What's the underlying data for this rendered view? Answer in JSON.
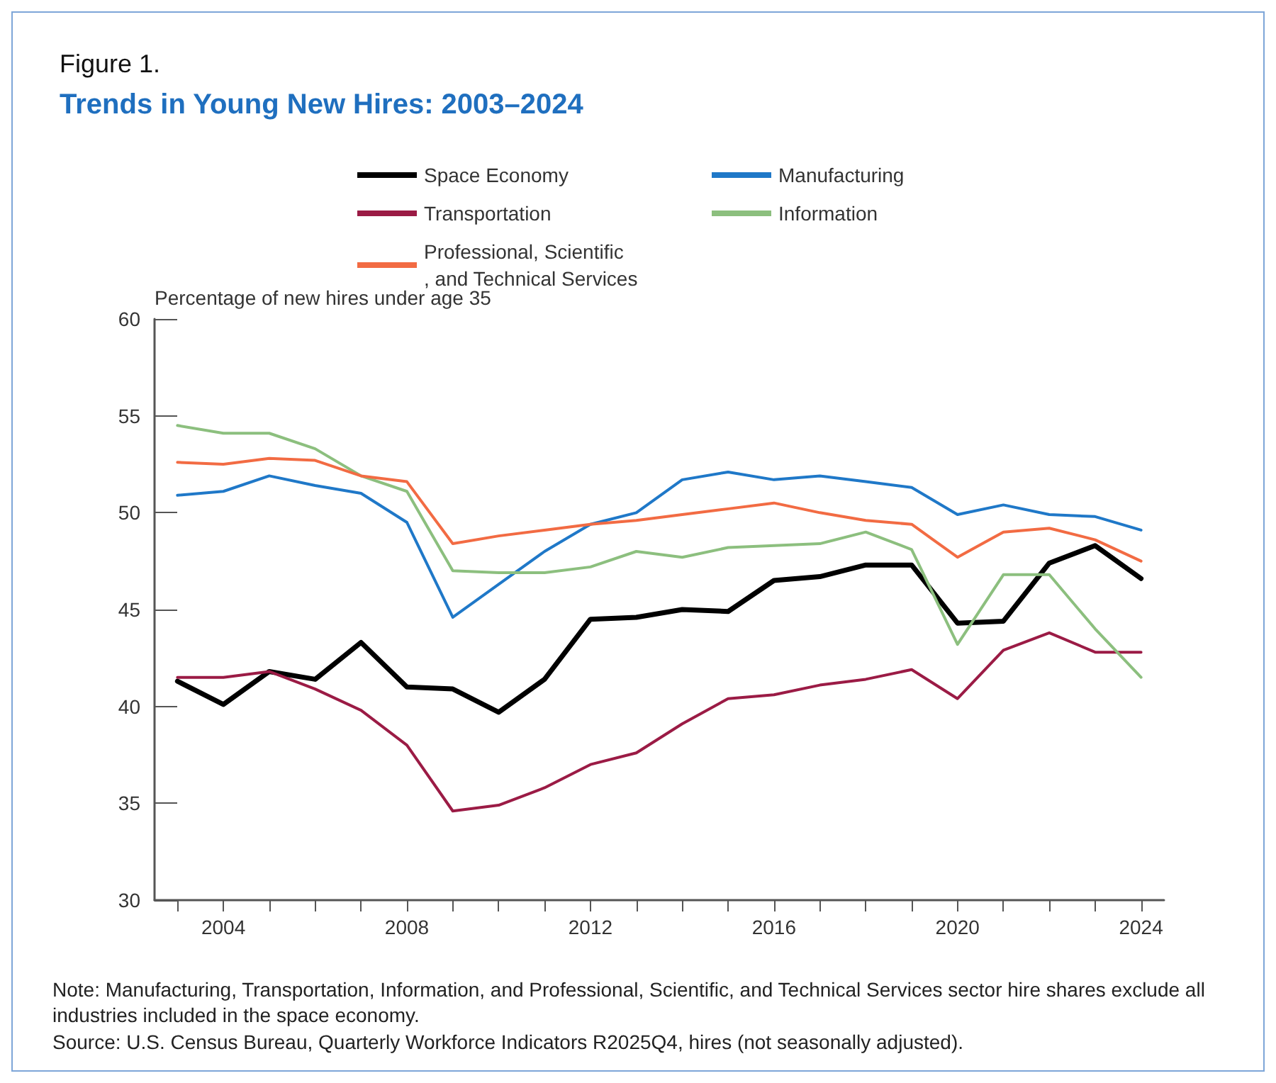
{
  "chart_data": {
    "type": "line",
    "title": "Figure 1.",
    "subtitle": "Trends in Young New Hires: 2003–2024",
    "ylabel": "Percentage of new hires under age 35",
    "annotations": [
      "Note: Manufacturing, Transportation, Information, and Professional, Scientific, and Technical Services sector hire shares exclude all industries included in the space economy.",
      "Source: U.S. Census Bureau, Quarterly Workforce Indicators R2025Q4, hires (not seasonally adjusted)."
    ],
    "x": [
      2003,
      2004,
      2005,
      2006,
      2007,
      2008,
      2009,
      2010,
      2011,
      2012,
      2013,
      2014,
      2015,
      2016,
      2017,
      2018,
      2019,
      2020,
      2021,
      2022,
      2023,
      2024
    ],
    "series": [
      {
        "name": "Space Economy",
        "color": "#000000",
        "values": [
          41.3,
          40.1,
          41.8,
          41.4,
          43.3,
          41.0,
          40.9,
          39.7,
          41.4,
          44.5,
          44.6,
          45.0,
          44.9,
          46.5,
          46.7,
          47.3,
          47.3,
          44.3,
          44.4,
          47.4,
          48.3,
          46.6
        ]
      },
      {
        "name": "Manufacturing",
        "color": "#1f78c8",
        "values": [
          50.9,
          51.1,
          51.9,
          51.4,
          51.0,
          49.5,
          44.6,
          46.3,
          48.0,
          49.4,
          50.0,
          51.7,
          52.1,
          51.7,
          51.9,
          51.6,
          51.3,
          49.9,
          50.4,
          49.9,
          49.8,
          49.1
        ]
      },
      {
        "name": "Transportation",
        "color": "#9b1b45",
        "values": [
          41.5,
          41.5,
          41.8,
          40.9,
          39.8,
          38.0,
          34.6,
          34.9,
          35.8,
          37.0,
          37.6,
          39.1,
          40.4,
          40.6,
          41.1,
          41.4,
          41.9,
          40.4,
          42.9,
          43.8,
          42.8,
          42.8
        ]
      },
      {
        "name": "Information",
        "color": "#8cbf7e",
        "values": [
          54.5,
          54.1,
          54.1,
          53.3,
          51.9,
          51.1,
          47.0,
          46.9,
          46.9,
          47.2,
          48.0,
          47.7,
          48.2,
          48.3,
          48.4,
          49.0,
          48.1,
          43.2,
          46.8,
          46.8,
          44.0,
          41.5
        ]
      },
      {
        "name": "Professional, Scientific, and Technical Services",
        "color": "#f26b43",
        "values": [
          52.6,
          52.5,
          52.8,
          52.7,
          51.9,
          51.6,
          48.4,
          48.8,
          49.1,
          49.4,
          49.6,
          49.9,
          50.2,
          50.5,
          50.0,
          49.6,
          49.4,
          47.7,
          49.0,
          49.2,
          48.6,
          47.5
        ]
      }
    ],
    "xlim": [
      2002.5,
      2024.5
    ],
    "xticks": [
      {
        "value": 2003,
        "label": null
      },
      2004,
      {
        "value": 2005,
        "label": null
      },
      {
        "value": 2006,
        "label": null
      },
      {
        "value": 2007,
        "label": null
      },
      2008,
      {
        "value": 2009,
        "label": null
      },
      {
        "value": 2010,
        "label": null
      },
      {
        "value": 2011,
        "label": null
      },
      2012,
      {
        "value": 2013,
        "label": null
      },
      {
        "value": 2014,
        "label": null
      },
      {
        "value": 2015,
        "label": null
      },
      2016,
      {
        "value": 2017,
        "label": null
      },
      {
        "value": 2018,
        "label": null
      },
      {
        "value": 2019,
        "label": null
      },
      2020,
      {
        "value": 2021,
        "label": null
      },
      {
        "value": 2022,
        "label": null
      },
      {
        "value": 2023,
        "label": null
      },
      2024
    ],
    "ylim": [
      30,
      60
    ],
    "yticks": [
      30,
      35,
      40,
      45,
      50,
      55,
      60
    ],
    "legend": "top",
    "marker": "none",
    "line_style": "solid"
  }
}
